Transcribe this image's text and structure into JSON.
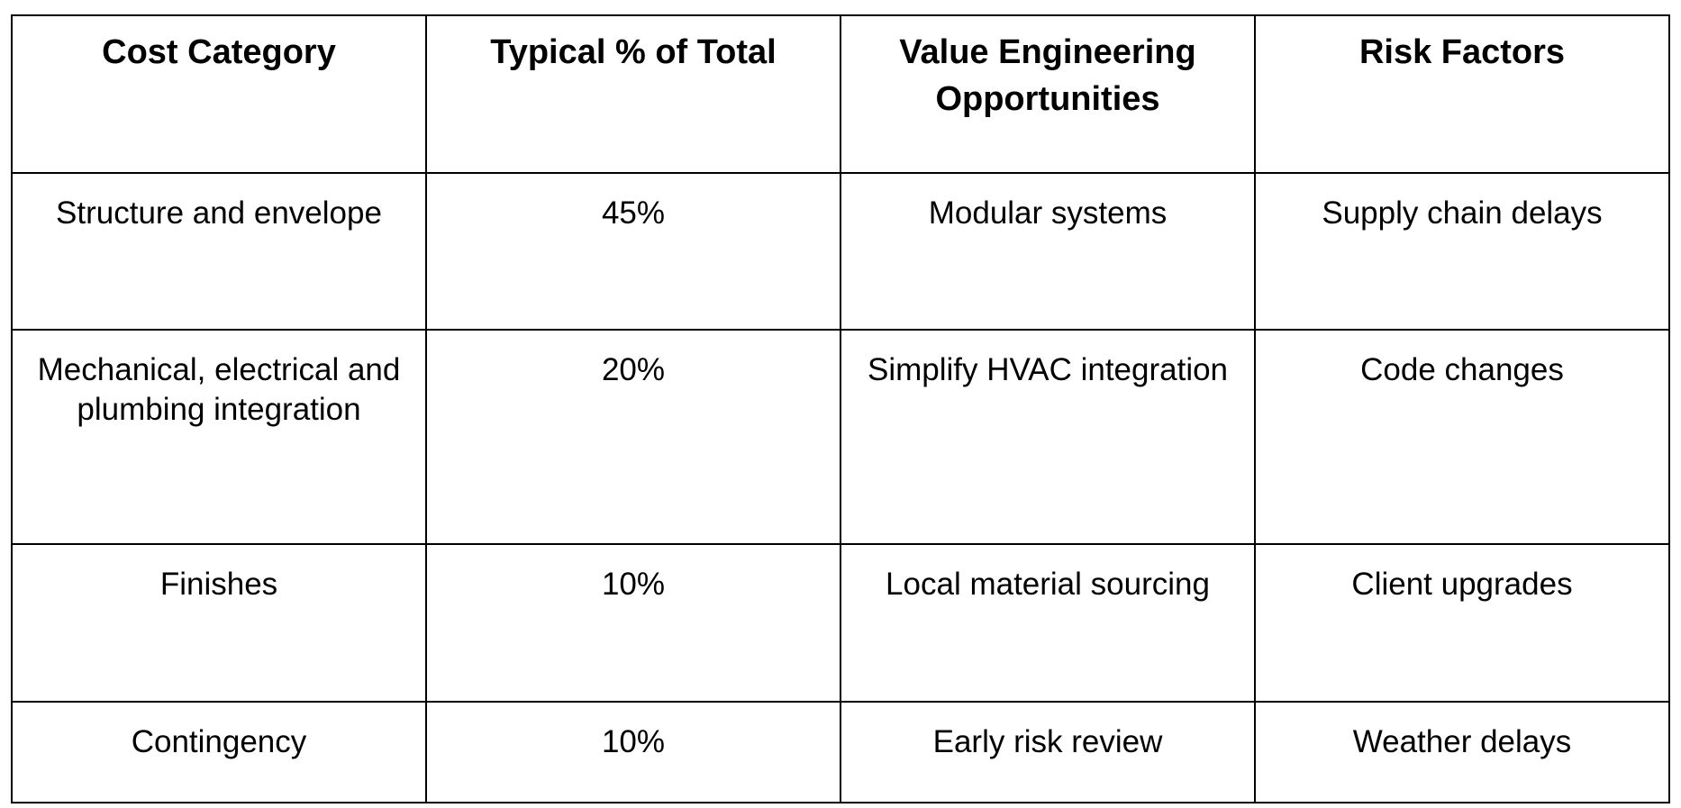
{
  "table": {
    "headers": [
      "Cost Category",
      "Typical % of Total",
      "Value Engineering Opportunities",
      "Risk Factors"
    ],
    "rows": [
      [
        "Structure and envelope",
        "45%",
        "Modular systems",
        "Supply chain delays"
      ],
      [
        "Mechanical, electrical and plumbing integration",
        "20%",
        "Simplify HVAC integration",
        "Code changes"
      ],
      [
        "Finishes",
        "10%",
        "Local material sourcing",
        "Client upgrades"
      ],
      [
        "Contingency",
        "10%",
        "Early risk review",
        "Weather delays"
      ]
    ]
  }
}
